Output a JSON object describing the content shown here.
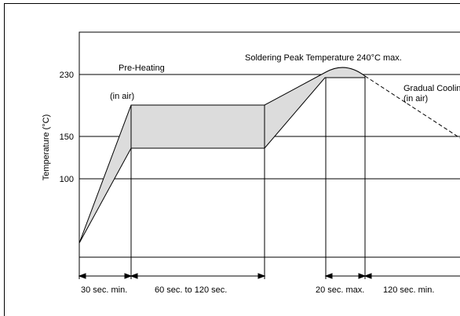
{
  "title": "Soldering Peak Temperature 240°C  max.",
  "y_axis_label": "Temperature  (°C)",
  "y_ticks": [
    "230",
    "150",
    "100"
  ],
  "annotations": {
    "pre_heating": "Pre-Heating",
    "in_air": "(in air)",
    "gradual_cooling": "Gradual Cooling",
    "gradual_cooling_in_air": "(in air)"
  },
  "durations": {
    "ramp": "30 sec. min.",
    "preheat": "60 sec. to 120 sec.",
    "peak": "20 sec. max.",
    "cooling": "120 sec. min."
  },
  "profile": {
    "peak_temperature_c": 240,
    "upper_level_c": 230,
    "preheat_level_c": 150,
    "lower_level_c": 100
  }
}
